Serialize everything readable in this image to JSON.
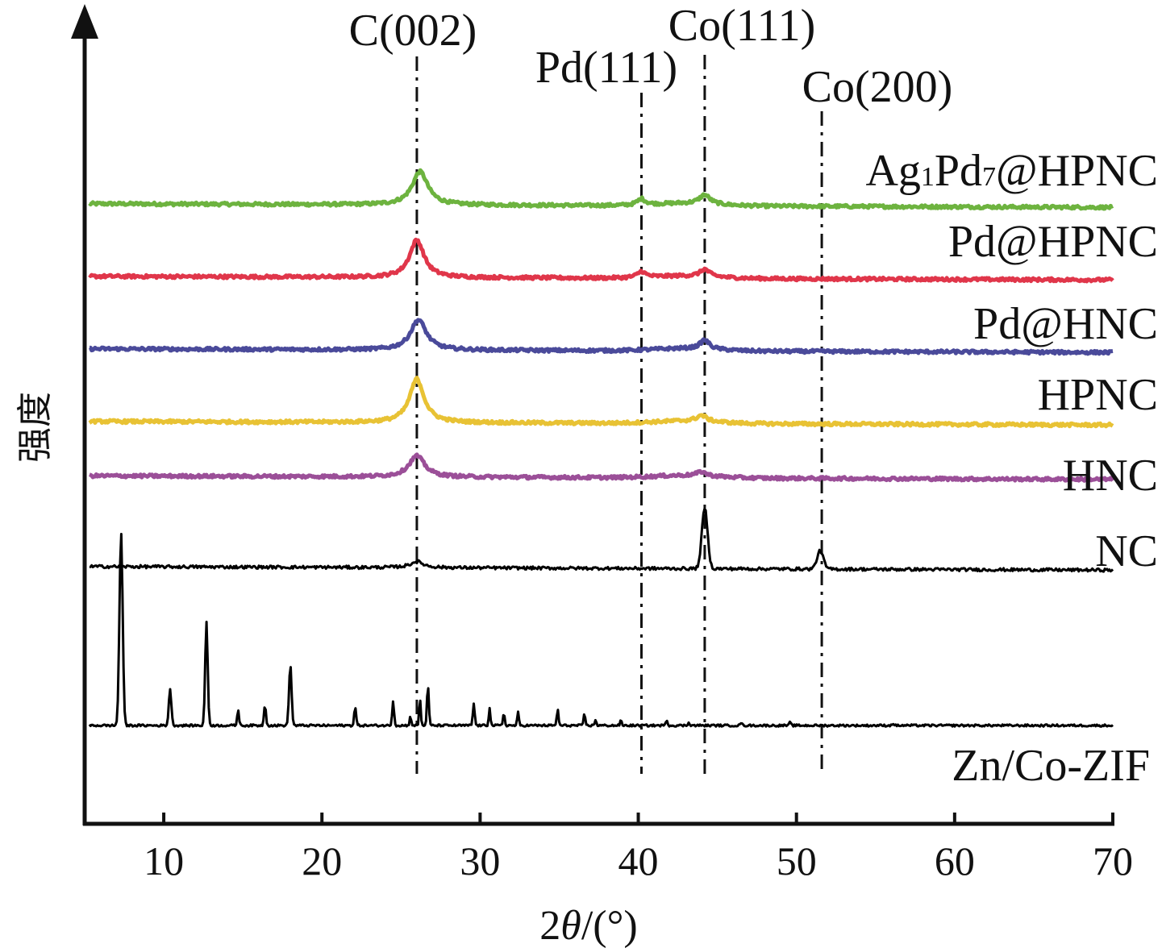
{
  "chart_data": {
    "type": "line",
    "xlabel_prefix": "2",
    "xlabel_theta": "θ",
    "xlabel_suffix": "/(°)",
    "ylabel": "强度",
    "xlim": [
      5,
      70
    ],
    "xticks": [
      10,
      20,
      30,
      40,
      50,
      60,
      70
    ],
    "y_ticks_shown": false,
    "grid": false,
    "legend": "inline labels at right of each trace",
    "reference_lines": [
      {
        "label": "C(002)",
        "x": 26.0,
        "style": "dash-dot"
      },
      {
        "label": "Pd(111)",
        "x": 40.2,
        "style": "dash-dot"
      },
      {
        "label": "Co(111)",
        "x": 44.2,
        "style": "dash-dot"
      },
      {
        "label": "Co(200)",
        "x": 51.6,
        "style": "dash-dot"
      }
    ],
    "series": [
      {
        "name": "Ag1Pd7@HPNC",
        "name_main": "Ag",
        "name_sub1": "1",
        "name_mid": "Pd",
        "name_sub2": "7",
        "name_end": "@HPNC",
        "color": "#6db33f",
        "offset": 8.6,
        "peaks": [
          {
            "x": 26.2,
            "h": 0.55,
            "w": 0.6
          },
          {
            "x": 40.2,
            "h": 0.1,
            "w": 0.3
          },
          {
            "x": 44.2,
            "h": 0.15,
            "w": 0.4
          }
        ]
      },
      {
        "name": "Pd@HPNC",
        "color": "#e0364a",
        "offset": 7.4,
        "peaks": [
          {
            "x": 26.0,
            "h": 0.62,
            "w": 0.55
          },
          {
            "x": 40.2,
            "h": 0.1,
            "w": 0.3
          },
          {
            "x": 44.2,
            "h": 0.12,
            "w": 0.35
          }
        ]
      },
      {
        "name": "Pd@HNC",
        "color": "#4a4a9a",
        "offset": 6.2,
        "peaks": [
          {
            "x": 26.1,
            "h": 0.5,
            "w": 0.6
          },
          {
            "x": 44.2,
            "h": 0.15,
            "w": 0.35
          }
        ]
      },
      {
        "name": "HPNC",
        "color": "#e8c234",
        "offset": 5.0,
        "peaks": [
          {
            "x": 26.0,
            "h": 0.72,
            "w": 0.55
          },
          {
            "x": 44.0,
            "h": 0.1,
            "w": 0.4
          }
        ]
      },
      {
        "name": "HNC",
        "color": "#9b4f98",
        "offset": 4.1,
        "peaks": [
          {
            "x": 26.0,
            "h": 0.35,
            "w": 0.6
          },
          {
            "x": 44.0,
            "h": 0.07,
            "w": 0.35
          }
        ]
      },
      {
        "name": "NC",
        "color": "#000000",
        "offset": 2.6,
        "peaks": [
          {
            "x": 26.0,
            "h": 0.1,
            "w": 0.5
          },
          {
            "x": 44.2,
            "h": 1.0,
            "w": 0.18
          },
          {
            "x": 51.5,
            "h": 0.3,
            "w": 0.2
          }
        ]
      },
      {
        "name": "Zn/Co-ZIF",
        "color": "#000000",
        "offset": 0.0,
        "peaks": [
          {
            "x": 7.3,
            "h": 3.2,
            "w": 0.1
          },
          {
            "x": 10.4,
            "h": 0.6,
            "w": 0.08
          },
          {
            "x": 12.7,
            "h": 1.7,
            "w": 0.08
          },
          {
            "x": 14.7,
            "h": 0.25,
            "w": 0.06
          },
          {
            "x": 16.4,
            "h": 0.35,
            "w": 0.06
          },
          {
            "x": 18.0,
            "h": 1.0,
            "w": 0.08
          },
          {
            "x": 22.1,
            "h": 0.3,
            "w": 0.06
          },
          {
            "x": 24.5,
            "h": 0.4,
            "w": 0.06
          },
          {
            "x": 25.6,
            "h": 0.15,
            "w": 0.05
          },
          {
            "x": 26.2,
            "h": 0.45,
            "w": 0.05
          },
          {
            "x": 26.7,
            "h": 0.65,
            "w": 0.06
          },
          {
            "x": 29.6,
            "h": 0.35,
            "w": 0.06
          },
          {
            "x": 30.6,
            "h": 0.3,
            "w": 0.05
          },
          {
            "x": 31.5,
            "h": 0.22,
            "w": 0.05
          },
          {
            "x": 32.4,
            "h": 0.22,
            "w": 0.05
          },
          {
            "x": 34.9,
            "h": 0.28,
            "w": 0.05
          },
          {
            "x": 36.6,
            "h": 0.2,
            "w": 0.05
          },
          {
            "x": 37.3,
            "h": 0.1,
            "w": 0.05
          },
          {
            "x": 38.9,
            "h": 0.08,
            "w": 0.05
          },
          {
            "x": 41.8,
            "h": 0.1,
            "w": 0.05
          },
          {
            "x": 43.2,
            "h": 0.06,
            "w": 0.05
          },
          {
            "x": 46.5,
            "h": 0.05,
            "w": 0.05
          },
          {
            "x": 49.6,
            "h": 0.05,
            "w": 0.05
          },
          {
            "x": 56.1,
            "h": 0.04,
            "w": 0.05
          }
        ]
      }
    ]
  }
}
